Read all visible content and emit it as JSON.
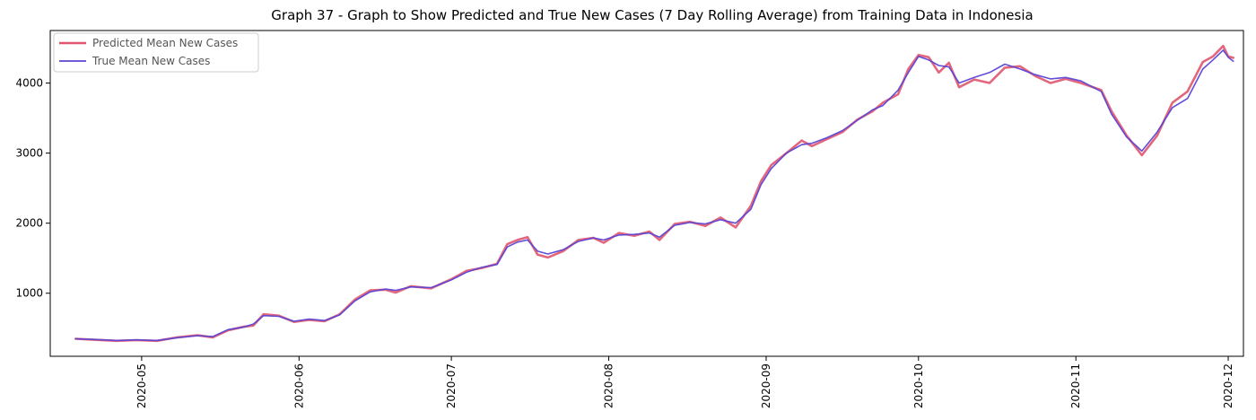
{
  "chart_data": {
    "type": "line",
    "title": "Graph 37 - Graph to Show Predicted and True New Cases (7 Day Rolling Average) from Training Data in Indonesia",
    "xlabel": "",
    "ylabel": "",
    "x_axis": "date",
    "xlim": [
      "2020-04-13",
      "2020-12-04"
    ],
    "ylim": [
      100,
      4750
    ],
    "xticks": [
      "2020-05",
      "2020-06",
      "2020-07",
      "2020-08",
      "2020-09",
      "2020-10",
      "2020-11",
      "2020-12"
    ],
    "yticks": [
      1000,
      2000,
      3000,
      4000
    ],
    "grid": false,
    "legend_position": "top-left",
    "series": [
      {
        "name": "Predicted Mean New Cases",
        "color": "#e0566e",
        "points": [
          [
            "2020-04-18",
            350
          ],
          [
            "2020-04-22",
            335
          ],
          [
            "2020-04-26",
            320
          ],
          [
            "2020-04-30",
            330
          ],
          [
            "2020-05-04",
            320
          ],
          [
            "2020-05-08",
            370
          ],
          [
            "2020-05-12",
            400
          ],
          [
            "2020-05-15",
            370
          ],
          [
            "2020-05-18",
            470
          ],
          [
            "2020-05-21",
            520
          ],
          [
            "2020-05-23",
            540
          ],
          [
            "2020-05-25",
            700
          ],
          [
            "2020-05-28",
            680
          ],
          [
            "2020-05-31",
            590
          ],
          [
            "2020-06-03",
            620
          ],
          [
            "2020-06-06",
            600
          ],
          [
            "2020-06-09",
            700
          ],
          [
            "2020-06-12",
            910
          ],
          [
            "2020-06-15",
            1040
          ],
          [
            "2020-06-18",
            1050
          ],
          [
            "2020-06-20",
            1010
          ],
          [
            "2020-06-23",
            1100
          ],
          [
            "2020-06-27",
            1070
          ],
          [
            "2020-07-01",
            1200
          ],
          [
            "2020-07-04",
            1320
          ],
          [
            "2020-07-07",
            1360
          ],
          [
            "2020-07-10",
            1420
          ],
          [
            "2020-07-12",
            1700
          ],
          [
            "2020-07-14",
            1760
          ],
          [
            "2020-07-16",
            1800
          ],
          [
            "2020-07-18",
            1550
          ],
          [
            "2020-07-20",
            1510
          ],
          [
            "2020-07-23",
            1600
          ],
          [
            "2020-07-26",
            1760
          ],
          [
            "2020-07-29",
            1790
          ],
          [
            "2020-07-31",
            1720
          ],
          [
            "2020-08-03",
            1860
          ],
          [
            "2020-08-06",
            1820
          ],
          [
            "2020-08-09",
            1880
          ],
          [
            "2020-08-11",
            1760
          ],
          [
            "2020-08-14",
            1990
          ],
          [
            "2020-08-17",
            2020
          ],
          [
            "2020-08-20",
            1960
          ],
          [
            "2020-08-23",
            2080
          ],
          [
            "2020-08-26",
            1940
          ],
          [
            "2020-08-29",
            2250
          ],
          [
            "2020-08-31",
            2600
          ],
          [
            "2020-09-02",
            2830
          ],
          [
            "2020-09-05",
            3000
          ],
          [
            "2020-09-08",
            3180
          ],
          [
            "2020-09-10",
            3100
          ],
          [
            "2020-09-13",
            3200
          ],
          [
            "2020-09-16",
            3300
          ],
          [
            "2020-09-19",
            3480
          ],
          [
            "2020-09-22",
            3600
          ],
          [
            "2020-09-24",
            3720
          ],
          [
            "2020-09-27",
            3840
          ],
          [
            "2020-09-29",
            4200
          ],
          [
            "2020-10-01",
            4400
          ],
          [
            "2020-10-03",
            4370
          ],
          [
            "2020-10-05",
            4150
          ],
          [
            "2020-10-07",
            4290
          ],
          [
            "2020-10-09",
            3940
          ],
          [
            "2020-10-12",
            4050
          ],
          [
            "2020-10-15",
            4000
          ],
          [
            "2020-10-18",
            4220
          ],
          [
            "2020-10-21",
            4240
          ],
          [
            "2020-10-24",
            4100
          ],
          [
            "2020-10-27",
            4000
          ],
          [
            "2020-10-30",
            4060
          ],
          [
            "2020-11-02",
            4000
          ],
          [
            "2020-11-06",
            3900
          ],
          [
            "2020-11-08",
            3600
          ],
          [
            "2020-11-11",
            3250
          ],
          [
            "2020-11-14",
            2970
          ],
          [
            "2020-11-17",
            3250
          ],
          [
            "2020-11-20",
            3720
          ],
          [
            "2020-11-23",
            3880
          ],
          [
            "2020-11-26",
            4300
          ],
          [
            "2020-11-28",
            4380
          ],
          [
            "2020-11-30",
            4530
          ],
          [
            "2020-12-01",
            4380
          ],
          [
            "2020-12-02",
            4360
          ]
        ]
      },
      {
        "name": "True Mean New Cases",
        "color": "#5a45d6",
        "points": [
          [
            "2020-04-18",
            350
          ],
          [
            "2020-04-22",
            340
          ],
          [
            "2020-04-26",
            325
          ],
          [
            "2020-04-30",
            335
          ],
          [
            "2020-05-04",
            325
          ],
          [
            "2020-05-08",
            365
          ],
          [
            "2020-05-12",
            395
          ],
          [
            "2020-05-15",
            380
          ],
          [
            "2020-05-18",
            480
          ],
          [
            "2020-05-21",
            515
          ],
          [
            "2020-05-23",
            560
          ],
          [
            "2020-05-25",
            680
          ],
          [
            "2020-05-28",
            670
          ],
          [
            "2020-05-31",
            600
          ],
          [
            "2020-06-03",
            630
          ],
          [
            "2020-06-06",
            610
          ],
          [
            "2020-06-09",
            690
          ],
          [
            "2020-06-12",
            890
          ],
          [
            "2020-06-15",
            1020
          ],
          [
            "2020-06-18",
            1060
          ],
          [
            "2020-06-20",
            1040
          ],
          [
            "2020-06-23",
            1090
          ],
          [
            "2020-06-27",
            1080
          ],
          [
            "2020-07-01",
            1190
          ],
          [
            "2020-07-04",
            1300
          ],
          [
            "2020-07-07",
            1370
          ],
          [
            "2020-07-10",
            1410
          ],
          [
            "2020-07-12",
            1660
          ],
          [
            "2020-07-14",
            1730
          ],
          [
            "2020-07-16",
            1760
          ],
          [
            "2020-07-18",
            1600
          ],
          [
            "2020-07-20",
            1560
          ],
          [
            "2020-07-23",
            1620
          ],
          [
            "2020-07-26",
            1740
          ],
          [
            "2020-07-29",
            1790
          ],
          [
            "2020-07-31",
            1760
          ],
          [
            "2020-08-03",
            1830
          ],
          [
            "2020-08-06",
            1840
          ],
          [
            "2020-08-09",
            1860
          ],
          [
            "2020-08-11",
            1800
          ],
          [
            "2020-08-14",
            1970
          ],
          [
            "2020-08-17",
            2010
          ],
          [
            "2020-08-20",
            1990
          ],
          [
            "2020-08-23",
            2050
          ],
          [
            "2020-08-26",
            2000
          ],
          [
            "2020-08-29",
            2200
          ],
          [
            "2020-08-31",
            2550
          ],
          [
            "2020-09-02",
            2780
          ],
          [
            "2020-09-05",
            3000
          ],
          [
            "2020-09-08",
            3120
          ],
          [
            "2020-09-10",
            3140
          ],
          [
            "2020-09-13",
            3220
          ],
          [
            "2020-09-16",
            3320
          ],
          [
            "2020-09-19",
            3470
          ],
          [
            "2020-09-22",
            3620
          ],
          [
            "2020-09-24",
            3680
          ],
          [
            "2020-09-27",
            3900
          ],
          [
            "2020-09-29",
            4150
          ],
          [
            "2020-10-01",
            4380
          ],
          [
            "2020-10-03",
            4330
          ],
          [
            "2020-10-05",
            4250
          ],
          [
            "2020-10-07",
            4230
          ],
          [
            "2020-10-09",
            4000
          ],
          [
            "2020-10-12",
            4080
          ],
          [
            "2020-10-15",
            4150
          ],
          [
            "2020-10-18",
            4270
          ],
          [
            "2020-10-21",
            4200
          ],
          [
            "2020-10-24",
            4120
          ],
          [
            "2020-10-27",
            4060
          ],
          [
            "2020-10-30",
            4080
          ],
          [
            "2020-11-02",
            4030
          ],
          [
            "2020-11-06",
            3880
          ],
          [
            "2020-11-08",
            3560
          ],
          [
            "2020-11-11",
            3230
          ],
          [
            "2020-11-14",
            3030
          ],
          [
            "2020-11-17",
            3300
          ],
          [
            "2020-11-20",
            3650
          ],
          [
            "2020-11-23",
            3780
          ],
          [
            "2020-11-26",
            4200
          ],
          [
            "2020-11-28",
            4330
          ],
          [
            "2020-11-30",
            4470
          ],
          [
            "2020-12-01",
            4370
          ],
          [
            "2020-12-02",
            4310
          ]
        ]
      }
    ]
  }
}
